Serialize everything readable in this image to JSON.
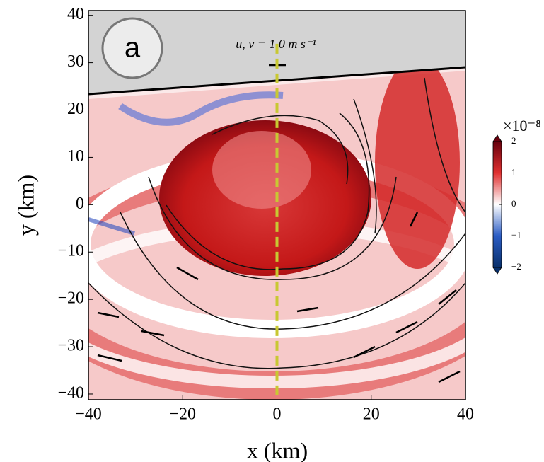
{
  "chart_data": {
    "type": "heatmap",
    "panel_label": "a",
    "annotation": "u, v = 1.0 m s⁻¹",
    "x_label": "x (km)",
    "y_label": "y (km)",
    "xlim": [
      -40,
      40
    ],
    "xticks": [
      {
        "value": -40,
        "label": "−40"
      },
      {
        "value": -20,
        "label": "−20"
      },
      0,
      20,
      40
    ],
    "ylim": [
      -41.2,
      41
    ],
    "yticks": [
      {
        "value": -40,
        "label": "−40"
      },
      {
        "value": -30,
        "label": "−30"
      },
      {
        "value": -20,
        "label": "−20"
      },
      {
        "value": -10,
        "label": "−10"
      },
      0,
      10,
      20,
      30,
      40
    ],
    "section_x": 0,
    "section_color": "#c8c832",
    "colorbar_label": "×10⁻⁸",
    "clim": [
      -2,
      2
    ],
    "cticks": [
      {
        "value": -2,
        "label": "−2"
      },
      {
        "value": -1,
        "label": "−1"
      },
      0,
      1,
      2
    ],
    "colormap": [
      "#08306b",
      "#2b5cc4",
      "#ffffff",
      "#e03030",
      "#67000d"
    ]
  }
}
